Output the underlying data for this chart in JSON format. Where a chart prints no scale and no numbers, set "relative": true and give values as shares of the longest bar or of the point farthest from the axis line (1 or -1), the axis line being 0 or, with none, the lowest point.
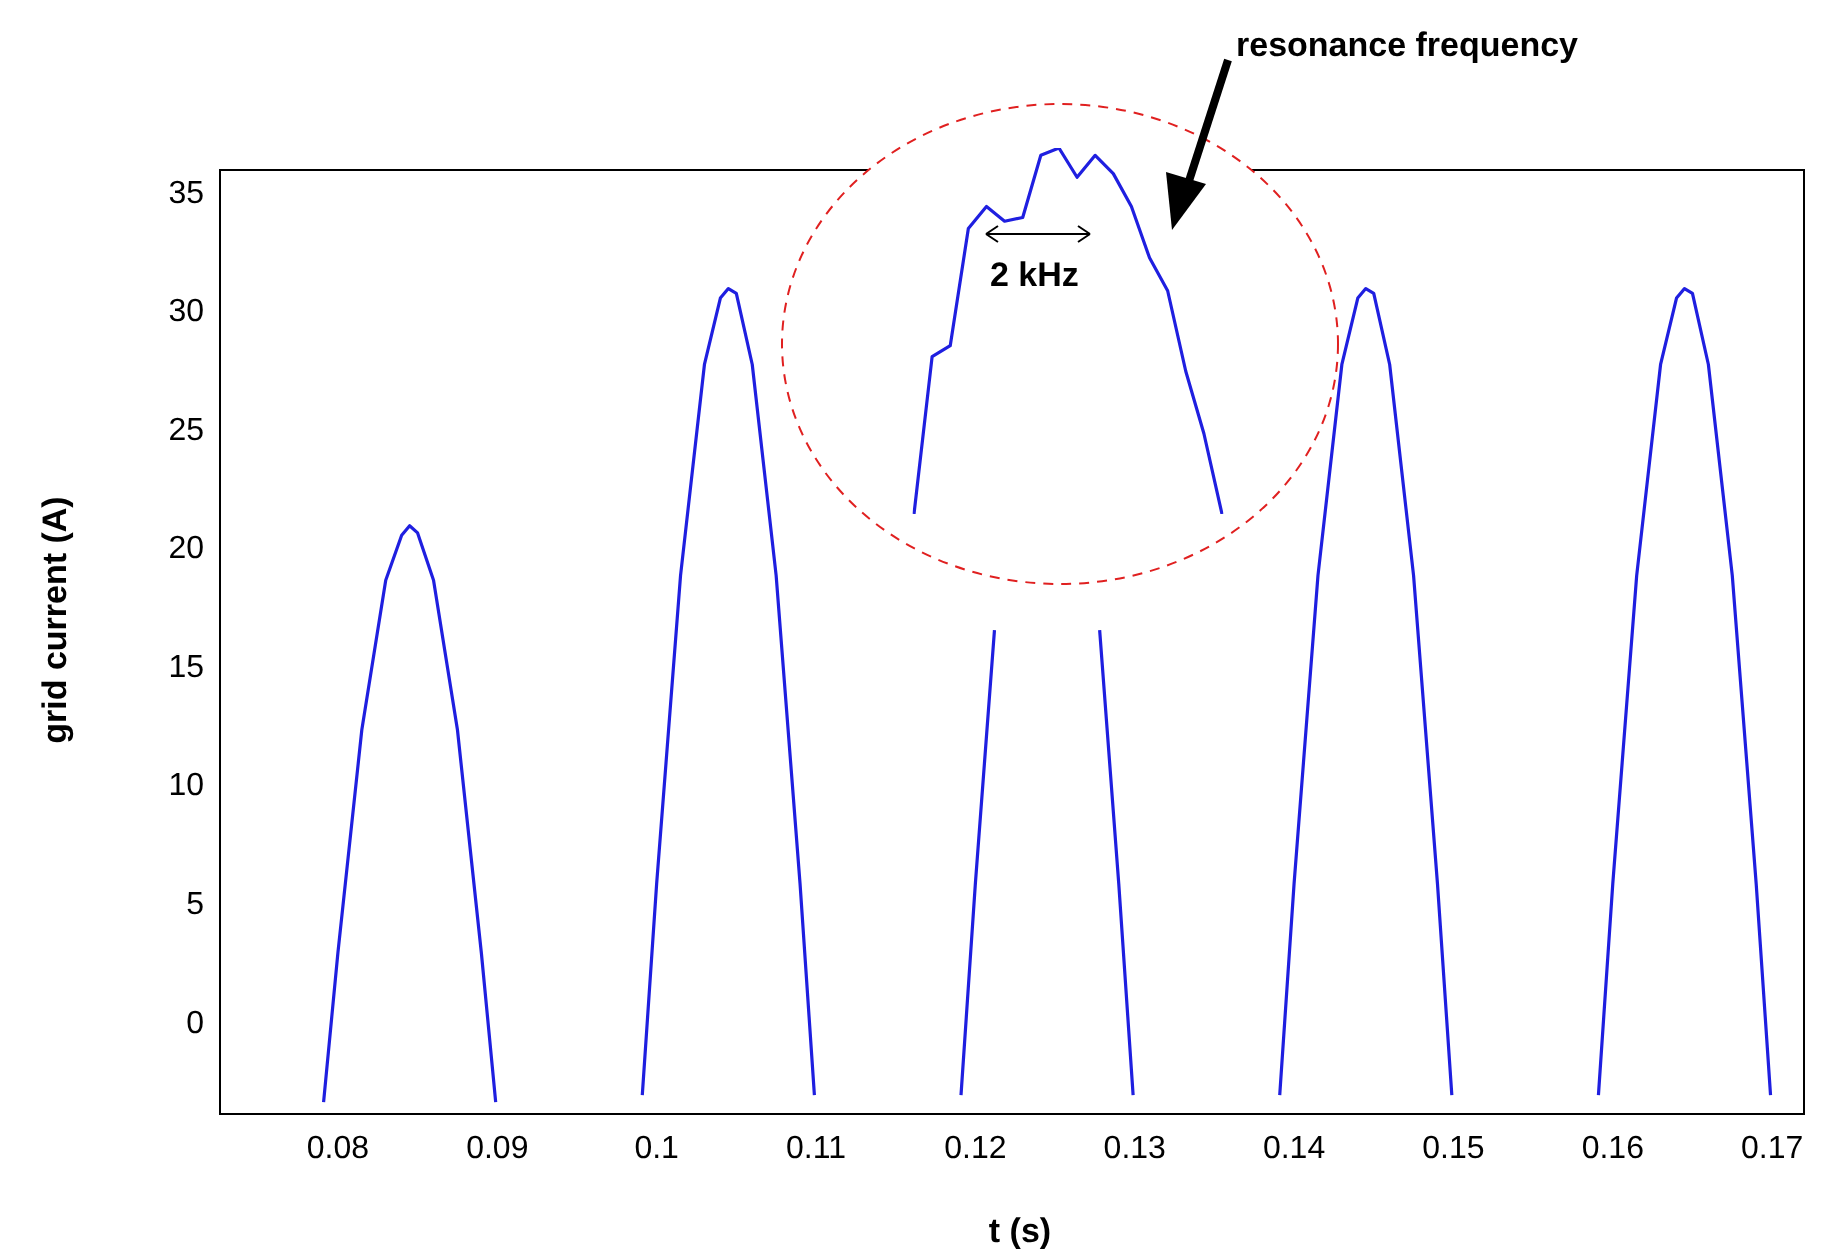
{
  "chart_data": [
    {
      "type": "line",
      "xlabel": "t (s)",
      "ylabel": "grid current (A)",
      "grid": false,
      "legend": false,
      "marker": "none",
      "line_style": "solid",
      "xlim": [
        0.0726,
        0.172
      ],
      "ylim": [
        -3.8,
        36
      ],
      "xticks": [
        0.08,
        0.09,
        0.1,
        0.11,
        0.12,
        0.13,
        0.14,
        0.15,
        0.16,
        0.17
      ],
      "yticks": [
        0,
        5,
        10,
        15,
        20,
        25,
        30,
        35
      ],
      "x": [
        0.0791,
        0.08,
        0.0815,
        0.083,
        0.084,
        0.0845,
        0.085,
        0.086,
        0.0875,
        0.089,
        0.0899,
        0.0945,
        0.0991,
        0.1,
        0.1015,
        0.103,
        0.104,
        0.1045,
        0.105,
        0.106,
        0.1075,
        0.109,
        0.1099,
        0.1145,
        0.1191,
        0.12,
        0.1212,
        0.123,
        0.124,
        0.1245,
        0.125,
        0.126,
        0.1278,
        0.129,
        0.1299,
        0.1345,
        0.1391,
        0.14,
        0.1415,
        0.143,
        0.144,
        0.1445,
        0.145,
        0.146,
        0.1475,
        0.149,
        0.1499,
        0.1545,
        0.1591,
        0.16,
        0.1615,
        0.163,
        0.164,
        0.1645,
        0.165,
        0.166,
        0.1675,
        0.169,
        0.1699
      ],
      "series": [
        {
          "color": "#1f1fe0",
          "values": [
            -3.3,
            3,
            12.4,
            18.7,
            20.6,
            21,
            20.7,
            18.7,
            12.4,
            3,
            -3.3,
            null,
            -3,
            5.9,
            18.9,
            27.8,
            30.6,
            31,
            30.8,
            27.8,
            18.9,
            5.9,
            -3,
            null,
            -3,
            5.9,
            16.6,
            null,
            null,
            null,
            null,
            null,
            16.6,
            5.9,
            -3,
            null,
            -3,
            5.9,
            18.9,
            27.8,
            30.6,
            31,
            30.8,
            27.8,
            18.9,
            5.9,
            -3,
            null,
            -3,
            5.9,
            18.9,
            27.8,
            30.6,
            31,
            30.8,
            27.8,
            18.9,
            5.9,
            -3
          ]
        }
      ]
    },
    {
      "type": "line",
      "relative": true,
      "marker": "none",
      "annotations": [
        "resonance frequency",
        "2 kHz"
      ],
      "categories": [
        null,
        null,
        null,
        null,
        null,
        null,
        null,
        null,
        null,
        null,
        null,
        null,
        null,
        null,
        null,
        null,
        null,
        null
      ],
      "series": [
        {
          "color": "#1f1fe0",
          "values": [
            0,
            0.43,
            0.46,
            0.78,
            0.84,
            0.8,
            0.81,
            0.98,
            1,
            0.92,
            0.98,
            0.93,
            0.84,
            0.7,
            0.61,
            0.39,
            0.22,
            0
          ]
        }
      ]
    }
  ]
}
